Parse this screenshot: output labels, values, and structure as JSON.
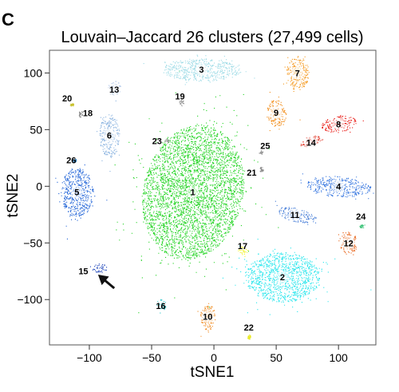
{
  "panel_letter": "C",
  "chart_data": {
    "type": "scatter",
    "title": "Louvain–Jaccard 26 clusters (27,499 cells)",
    "xlabel": "tSNE1",
    "ylabel": "tSNE2",
    "xlim": [
      -132,
      130
    ],
    "ylim": [
      -140,
      120
    ],
    "xticks": [
      -100,
      -50,
      0,
      50,
      100
    ],
    "yticks": [
      -100,
      -50,
      0,
      50,
      100
    ],
    "xtick_labels": [
      "−100",
      "−50",
      "0",
      "50",
      "100"
    ],
    "ytick_labels": [
      "−100",
      "−50",
      "0",
      "50",
      "100"
    ],
    "grid": false,
    "legend": "none",
    "arrow": {
      "from": [
        -80,
        -90
      ],
      "to": [
        -93,
        -78
      ],
      "color": "#111111"
    },
    "clusters": [
      {
        "id": "1",
        "color": "#22d422",
        "center": [
          -17,
          -5
        ],
        "rx": 40,
        "ry": 60,
        "angle": -10
      },
      {
        "id": "2",
        "color": "#22e5ec",
        "center": [
          55,
          -80
        ],
        "rx": 30,
        "ry": 22,
        "angle": 0
      },
      {
        "id": "3",
        "color": "#9edbe6",
        "center": [
          -10,
          103
        ],
        "rx": 32,
        "ry": 10,
        "angle": 0
      },
      {
        "id": "4",
        "color": "#3978e0",
        "center": [
          100,
          0
        ],
        "rx": 26,
        "ry": 9,
        "angle": -5
      },
      {
        "id": "5",
        "color": "#1a5fd6",
        "center": [
          -110,
          -5
        ],
        "rx": 13,
        "ry": 22,
        "angle": 0
      },
      {
        "id": "6",
        "color": "#8cb4e0",
        "center": [
          -84,
          45
        ],
        "rx": 8,
        "ry": 20,
        "angle": 0
      },
      {
        "id": "7",
        "color": "#f59a20",
        "center": [
          67,
          100
        ],
        "rx": 9,
        "ry": 15,
        "angle": 0
      },
      {
        "id": "8",
        "color": "#e8150f",
        "center": [
          100,
          55
        ],
        "rx": 14,
        "ry": 7,
        "angle": 10
      },
      {
        "id": "9",
        "color": "#f28d1a",
        "center": [
          50,
          65
        ],
        "rx": 8,
        "ry": 12,
        "angle": 0
      },
      {
        "id": "10",
        "color": "#f08a20",
        "center": [
          -5,
          -115
        ],
        "rx": 6,
        "ry": 12,
        "angle": 0
      },
      {
        "id": "11",
        "color": "#3f78d6",
        "center": [
          65,
          -25
        ],
        "rx": 16,
        "ry": 6,
        "angle": -15
      },
      {
        "id": "12",
        "color": "#e8641a",
        "center": [
          108,
          -50
        ],
        "rx": 7,
        "ry": 10,
        "angle": 0
      },
      {
        "id": "13",
        "color": "#8fb0e0",
        "center": [
          -80,
          87
        ],
        "rx": 5,
        "ry": 7,
        "angle": 0
      },
      {
        "id": "14",
        "color": "#e23c2d",
        "center": [
          78,
          40
        ],
        "rx": 10,
        "ry": 4,
        "angle": 20
      },
      {
        "id": "15",
        "color": "#1840b8",
        "center": [
          -92,
          -72
        ],
        "rx": 6,
        "ry": 4,
        "angle": 0
      },
      {
        "id": "16",
        "color": "#27c3c8",
        "center": [
          -42,
          -104
        ],
        "rx": 4,
        "ry": 5,
        "angle": 0
      },
      {
        "id": "17",
        "color": "#f2f21c",
        "center": [
          23,
          -56
        ],
        "rx": 4,
        "ry": 4,
        "angle": 0
      },
      {
        "id": "18",
        "color": "#8a8a8a",
        "center": [
          -107,
          64
        ],
        "rx": 2,
        "ry": 3,
        "angle": 0
      },
      {
        "id": "19",
        "color": "#9a9a9a",
        "center": [
          -26,
          74
        ],
        "rx": 2,
        "ry": 3,
        "angle": 0
      },
      {
        "id": "20",
        "color": "#c9c22f",
        "center": [
          -114,
          72
        ],
        "rx": 1.5,
        "ry": 1.5,
        "angle": 0
      },
      {
        "id": "21",
        "color": "#8a8a8a",
        "center": [
          38,
          15
        ],
        "rx": 1.5,
        "ry": 2.5,
        "angle": 0
      },
      {
        "id": "22",
        "color": "#e8e81c",
        "center": [
          28,
          -133
        ],
        "rx": 1.5,
        "ry": 2,
        "angle": 0
      },
      {
        "id": "23",
        "color": "#a0a0a0",
        "center": [
          -38,
          40
        ],
        "rx": 2,
        "ry": 2,
        "angle": 0
      },
      {
        "id": "24",
        "color": "#3ec47a",
        "center": [
          118,
          -35
        ],
        "rx": 2,
        "ry": 1.5,
        "angle": 0
      },
      {
        "id": "25",
        "color": "#9a9a9a",
        "center": [
          38,
          30
        ],
        "rx": 1.5,
        "ry": 1.5,
        "angle": 0
      },
      {
        "id": "26",
        "color": "#2d7fbf",
        "center": [
          -112,
          23
        ],
        "rx": 1.5,
        "ry": 1.5,
        "angle": 0
      }
    ]
  }
}
